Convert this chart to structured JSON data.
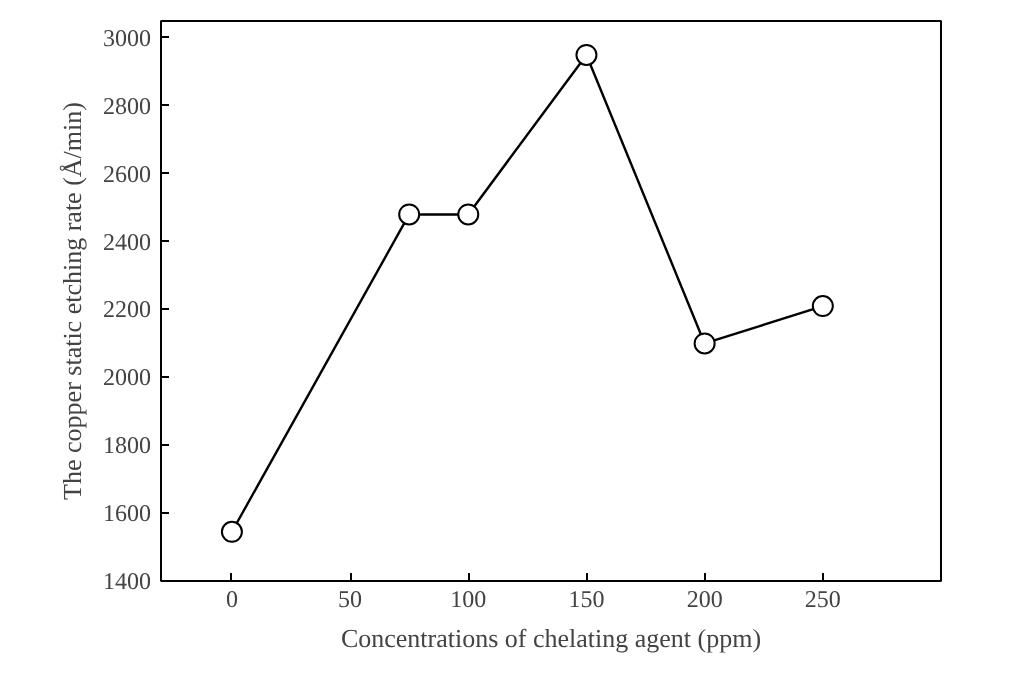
{
  "chart_data": {
    "type": "line",
    "xlabel": "Concentrations of chelating agent (ppm)",
    "ylabel": "The copper static etching rate (Å/min)",
    "x": [
      0,
      75,
      100,
      150,
      200,
      250
    ],
    "series": [
      {
        "color": "#000000",
        "values": [
          1545,
          2480,
          2480,
          2950,
          2100,
          2210
        ]
      }
    ],
    "xlim": [
      -30,
      300
    ],
    "xticks": [
      0,
      50,
      100,
      150,
      200,
      250
    ],
    "ylim": [
      1400,
      3050
    ],
    "yticks": [
      1400,
      1600,
      1800,
      2000,
      2200,
      2400,
      2600,
      2800,
      3000
    ],
    "marker": "circle",
    "line_style": "solid"
  }
}
